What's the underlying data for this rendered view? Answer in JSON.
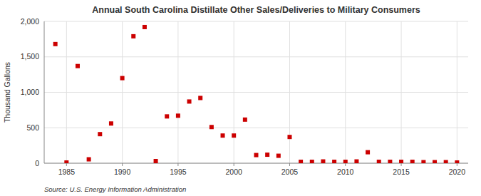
{
  "chart_data": {
    "type": "scatter",
    "title": "Annual South Carolina Distillate Other Sales/Deliveries to Military Consumers",
    "ylabel": "Thousand Gallons",
    "annotation": "Source: U.S. Energy Information Administration",
    "color": "#cc0000",
    "marker": "square",
    "grid": true,
    "xlim": [
      1983,
      2021
    ],
    "ylim": [
      0,
      2000
    ],
    "xticks": [
      1985,
      1990,
      1995,
      2000,
      2005,
      2010,
      2015,
      2020
    ],
    "yticks": [
      0,
      500,
      {
        "value": 1000,
        "label": "1,000"
      },
      {
        "value": 1500,
        "label": "1,500"
      },
      {
        "value": 2000,
        "label": "2,000"
      }
    ],
    "x": [
      1984,
      1985,
      1986,
      1987,
      1988,
      1989,
      1990,
      1991,
      1992,
      1993,
      1994,
      1995,
      1996,
      1997,
      1998,
      1999,
      2000,
      2001,
      2002,
      2003,
      2004,
      2005,
      2006,
      2007,
      2008,
      2009,
      2010,
      2011,
      2012,
      2013,
      2014,
      2015,
      2016,
      2017,
      2018,
      2019,
      2020
    ],
    "values": [
      1680,
      10,
      1370,
      55,
      410,
      560,
      1200,
      1790,
      1920,
      30,
      660,
      670,
      870,
      920,
      510,
      390,
      390,
      615,
      115,
      120,
      105,
      370,
      20,
      20,
      25,
      20,
      20,
      25,
      155,
      20,
      20,
      20,
      20,
      15,
      15,
      15,
      10
    ]
  }
}
